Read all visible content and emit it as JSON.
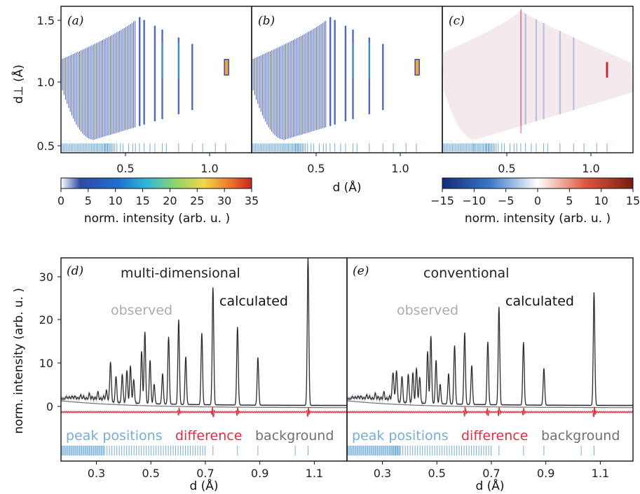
{
  "chart_data": [
    {
      "panel": "(a)",
      "type": "heatmap",
      "xlabel": "",
      "ylabel": "d⊥ (Å)",
      "xlim": [
        0.17,
        1.22
      ],
      "ylim": [
        0.45,
        1.58
      ],
      "xticks": [
        "0.5",
        "1.0"
      ],
      "yticks": [
        "0.5",
        "1.0",
        "1.5"
      ],
      "colorbar": {
        "label": "norm. intensity (arb. u. )",
        "ticks": [
          "0",
          "5",
          "10",
          "15",
          "20",
          "25",
          "30",
          "35"
        ],
        "range": [
          0,
          35
        ]
      }
    },
    {
      "panel": "(b)",
      "type": "heatmap",
      "xlabel": "d (Å)",
      "xlim": [
        0.17,
        1.22
      ],
      "ylim": [
        0.45,
        1.58
      ],
      "xticks": [
        "0.5",
        "1.0"
      ]
    },
    {
      "panel": "(c)",
      "type": "heatmap",
      "xlabel": "",
      "xlim": [
        0.17,
        1.22
      ],
      "ylim": [
        0.45,
        1.58
      ],
      "xticks": [
        "0.5",
        "1.0"
      ],
      "colorbar": {
        "label": "norm. intensity (arb. u. )",
        "ticks": [
          "−15",
          "−10",
          "−5",
          "0",
          "5",
          "10",
          "15"
        ],
        "range": [
          -15,
          15
        ]
      }
    },
    {
      "panel": "(d)",
      "type": "line",
      "title": "multi-dimensional",
      "xlabel": "d (Å)",
      "ylabel": "norm. intensity (arb. u. )",
      "xlim": [
        0.17,
        1.22
      ],
      "ylim": [
        -3.5,
        35
      ],
      "xticks": [
        "0.3",
        "0.5",
        "0.7",
        "0.9",
        "1.1"
      ],
      "yticks": [
        "0",
        "10",
        "20",
        "30"
      ],
      "series_labels": {
        "observed": "observed",
        "calculated": "calculated",
        "peaks": "peak positions",
        "difference": "difference",
        "background": "background"
      },
      "peaks": [
        {
          "d": 0.352,
          "i": 9.0
        },
        {
          "d": 0.372,
          "i": 6.0
        },
        {
          "d": 0.395,
          "i": 6.5
        },
        {
          "d": 0.412,
          "i": 7.5
        },
        {
          "d": 0.425,
          "i": 8.5
        },
        {
          "d": 0.437,
          "i": 5.5
        },
        {
          "d": 0.466,
          "i": 12.0
        },
        {
          "d": 0.478,
          "i": 16.5
        },
        {
          "d": 0.497,
          "i": 10.0
        },
        {
          "d": 0.512,
          "i": 4.5
        },
        {
          "d": 0.543,
          "i": 7.0
        },
        {
          "d": 0.565,
          "i": 15.5
        },
        {
          "d": 0.602,
          "i": 19.5
        },
        {
          "d": 0.628,
          "i": 11.0
        },
        {
          "d": 0.687,
          "i": 16.5
        },
        {
          "d": 0.728,
          "i": 27.0
        },
        {
          "d": 0.818,
          "i": 18.0
        },
        {
          "d": 0.893,
          "i": 11.0
        },
        {
          "d": 1.077,
          "i": 34.0
        }
      ],
      "difference_spikes": [
        {
          "d": 0.603,
          "a": 0.9
        },
        {
          "d": 0.728,
          "a": -1.2
        },
        {
          "d": 0.818,
          "a": 0.8
        },
        {
          "d": 1.077,
          "a": 1.1
        }
      ]
    },
    {
      "panel": "(e)",
      "type": "line",
      "title": "conventional",
      "xlabel": "d (Å)",
      "xlim": [
        0.17,
        1.22
      ],
      "ylim": [
        -3.5,
        35
      ],
      "xticks": [
        "0.3",
        "0.5",
        "0.7",
        "0.9",
        "1.1"
      ],
      "series_labels": {
        "observed": "observed",
        "calculated": "calculated",
        "peaks": "peak positions",
        "difference": "difference",
        "background": "background"
      },
      "peaks": [
        {
          "d": 0.34,
          "i": 5.0
        },
        {
          "d": 0.352,
          "i": 7.0
        },
        {
          "d": 0.372,
          "i": 6.0
        },
        {
          "d": 0.395,
          "i": 6.5
        },
        {
          "d": 0.412,
          "i": 7.0
        },
        {
          "d": 0.425,
          "i": 8.0
        },
        {
          "d": 0.437,
          "i": 6.0
        },
        {
          "d": 0.466,
          "i": 12.0
        },
        {
          "d": 0.478,
          "i": 15.5
        },
        {
          "d": 0.497,
          "i": 10.0
        },
        {
          "d": 0.512,
          "i": 4.5
        },
        {
          "d": 0.543,
          "i": 7.0
        },
        {
          "d": 0.565,
          "i": 13.5
        },
        {
          "d": 0.602,
          "i": 16.5
        },
        {
          "d": 0.628,
          "i": 9.0
        },
        {
          "d": 0.687,
          "i": 14.5
        },
        {
          "d": 0.728,
          "i": 22.5
        },
        {
          "d": 0.818,
          "i": 14.5
        },
        {
          "d": 0.893,
          "i": 8.5
        },
        {
          "d": 1.077,
          "i": 26.0
        }
      ],
      "difference_spikes": [
        {
          "d": 0.603,
          "a": 1.1
        },
        {
          "d": 0.687,
          "a": -0.8
        },
        {
          "d": 0.728,
          "a": 1.0
        },
        {
          "d": 0.818,
          "a": 0.7
        },
        {
          "d": 1.077,
          "a": 1.2
        }
      ]
    }
  ],
  "colors": {
    "observed": "#a0a4aa",
    "observed_label": "#a8abb0",
    "calculated": "#222222",
    "difference": "#d63340",
    "peak_positions": "#74aed6",
    "background": "#707070",
    "map_blue": "#3550b0",
    "map_cyan": "#2fa8c8"
  }
}
